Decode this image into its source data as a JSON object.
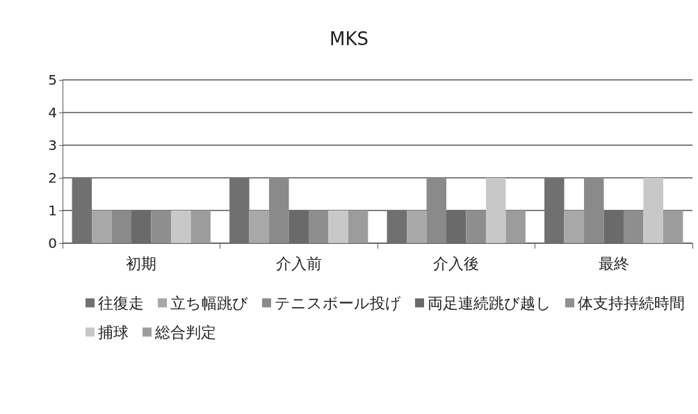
{
  "chart_data": {
    "type": "bar",
    "title": "MKS",
    "categories": [
      "初期",
      "介入前",
      "介入後",
      "最終"
    ],
    "series": [
      {
        "name": "往復走",
        "color": "#707070",
        "values": [
          2,
          2,
          1,
          2
        ]
      },
      {
        "name": "立ち幅跳び",
        "color": "#a8a8a8",
        "values": [
          1,
          1,
          1,
          1
        ]
      },
      {
        "name": "テニスボール投げ",
        "color": "#8a8a8a",
        "values": [
          1,
          2,
          2,
          2
        ]
      },
      {
        "name": "両足連続跳び越し",
        "color": "#6a6a6a",
        "values": [
          1,
          1,
          1,
          1
        ]
      },
      {
        "name": "体支持持続時間",
        "color": "#8e8e8e",
        "values": [
          1,
          1,
          1,
          1
        ]
      },
      {
        "name": "捕球",
        "color": "#c8c8c8",
        "values": [
          1,
          1,
          2,
          2
        ]
      },
      {
        "name": "総合判定",
        "color": "#9c9c9c",
        "values": [
          1,
          1,
          1,
          1
        ]
      }
    ],
    "ylim": [
      0,
      5
    ],
    "yticks": [
      0,
      1,
      2,
      3,
      4,
      5
    ],
    "grid": "y",
    "legend": "bottom"
  }
}
